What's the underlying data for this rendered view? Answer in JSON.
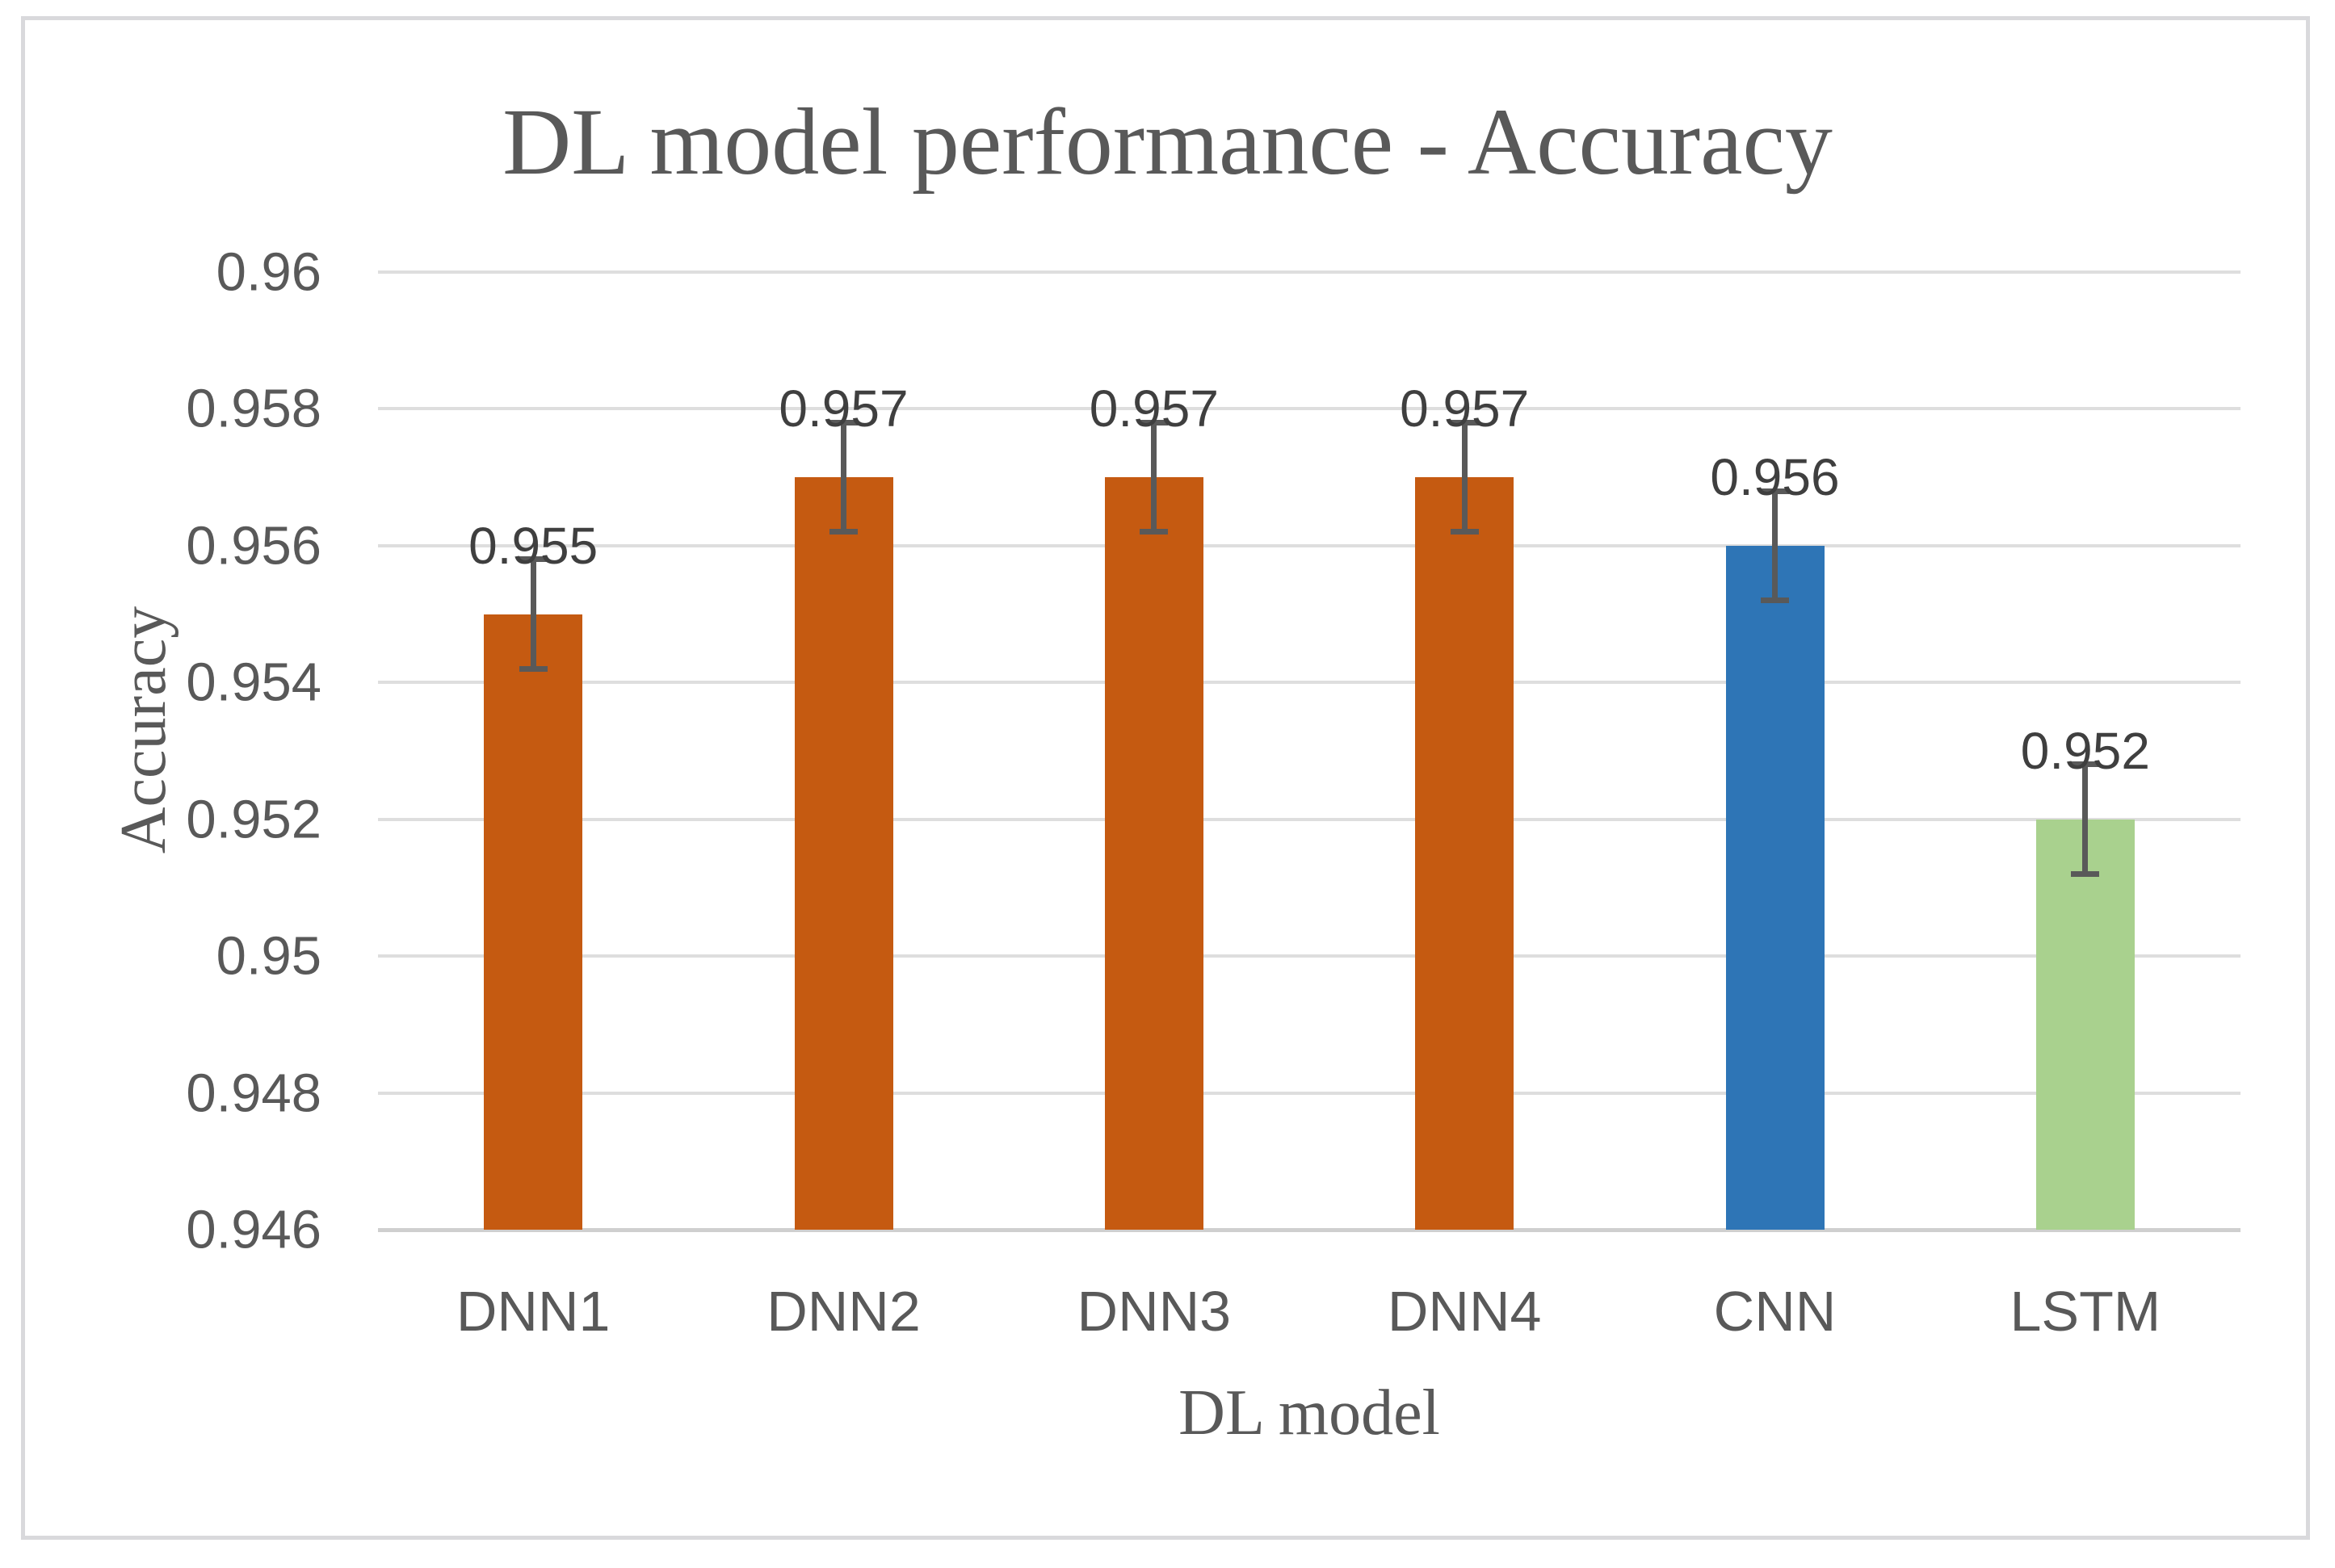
{
  "chart_data": {
    "type": "bar",
    "title": "DL model performance - Accuracy",
    "xlabel": "DL model",
    "ylabel": "Accuracy",
    "categories": [
      "DNN1",
      "DNN2",
      "DNN3",
      "DNN4",
      "CNN",
      "LSTM"
    ],
    "values": [
      0.955,
      0.957,
      0.957,
      0.957,
      0.956,
      0.952
    ],
    "data_labels": [
      "0.955",
      "0.957",
      "0.957",
      "0.957",
      "0.956",
      "0.952"
    ],
    "error_bar_plus_minus": 0.0008,
    "bar_colors": [
      "#C55A11",
      "#C55A11",
      "#C55A11",
      "#C55A11",
      "#2E75B6",
      "#A9D18E"
    ],
    "series_color_legend": {
      "DNN": "#C55A11",
      "CNN": "#2E75B6",
      "LSTM": "#A9D18E"
    },
    "ylim": [
      0.946,
      0.96
    ],
    "ytick_values": [
      0.96,
      0.958,
      0.956,
      0.954,
      0.952,
      0.95,
      0.948,
      0.946
    ],
    "ytick_labels": [
      "0.96",
      "0.958",
      "0.956",
      "0.954",
      "0.952",
      "0.95",
      "0.948",
      "0.946"
    ],
    "grid": true,
    "legend_position": "none",
    "colors": {
      "text": "#595959",
      "data_label_text": "#3F3F3F",
      "gridline": "#DEDEDE",
      "axis_line": "#CFCFCF",
      "error_bar": "#595959",
      "frame_border": "#D9D9DC",
      "background": "#FFFFFF"
    }
  }
}
